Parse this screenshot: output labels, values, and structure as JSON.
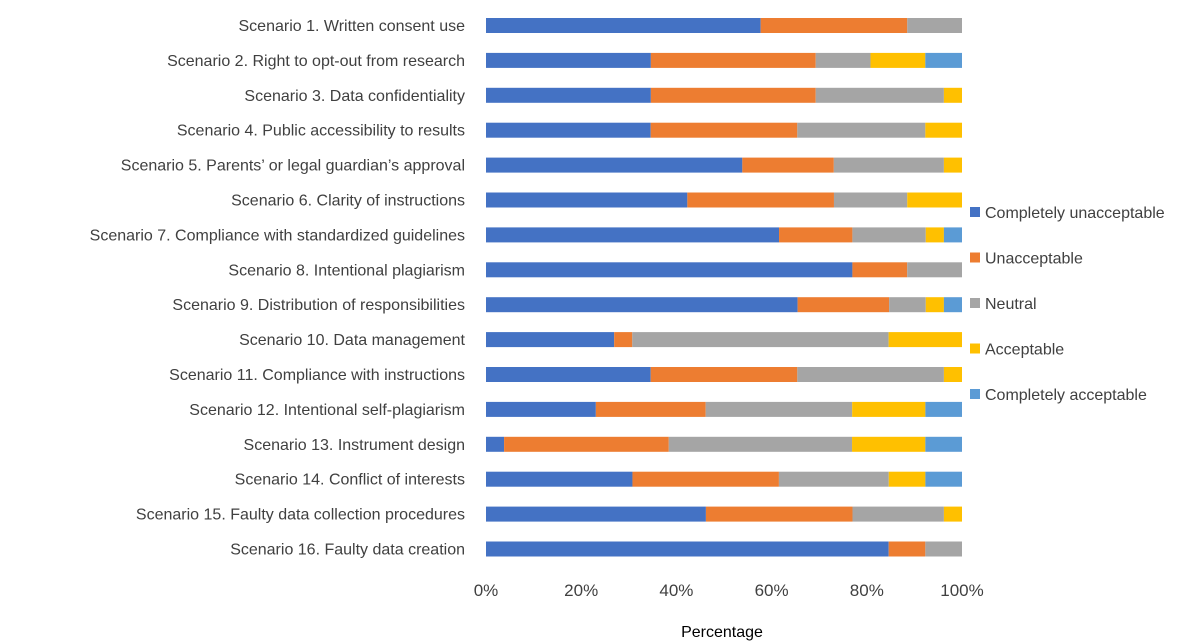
{
  "chart_data": {
    "type": "bar",
    "orientation": "horizontal",
    "stacked": true,
    "percent_stacked": true,
    "categories": [
      "Scenario 1. Written consent use",
      "Scenario 2. Right to opt-out from research",
      "Scenario 3. Data confidentiality",
      "Scenario 4. Public accessibility to results",
      "Scenario 5. Parents’ or legal guardian’s approval",
      "Scenario 6. Clarity of instructions",
      "Scenario 7. Compliance with standardized guidelines",
      "Scenario 8. Intentional plagiarism",
      "Scenario 9. Distribution of responsibilities",
      "Scenario 10. Data management",
      "Scenario 11. Compliance with instructions",
      "Scenario 12. Intentional self-plagiarism",
      "Scenario 13. Instrument design",
      "Scenario 14. Conflict of interests",
      "Scenario 15. Faulty data collection procedures",
      "Scenario 16. Faulty data creation"
    ],
    "series": [
      {
        "name": "Completely unacceptable",
        "color": "#4472C4",
        "values": [
          57.7,
          34.6,
          34.6,
          34.6,
          53.8,
          42.3,
          61.5,
          76.9,
          65.4,
          26.9,
          34.6,
          23.1,
          3.8,
          30.8,
          46.2,
          84.6
        ]
      },
      {
        "name": "Unacceptable",
        "color": "#ED7D31",
        "values": [
          30.8,
          34.6,
          34.6,
          30.8,
          19.2,
          30.8,
          15.4,
          11.5,
          19.2,
          3.8,
          30.8,
          23.1,
          34.6,
          30.8,
          30.8,
          7.7
        ]
      },
      {
        "name": "Neutral",
        "color": "#A5A5A5",
        "values": [
          11.5,
          11.5,
          26.9,
          26.9,
          23.1,
          15.4,
          15.4,
          11.5,
          7.7,
          53.8,
          30.8,
          30.8,
          38.5,
          23.1,
          19.2,
          7.7
        ]
      },
      {
        "name": "Acceptable",
        "color": "#FFC000",
        "values": [
          0,
          11.5,
          3.8,
          7.7,
          3.8,
          11.5,
          3.8,
          0,
          3.8,
          15.4,
          3.8,
          15.4,
          15.4,
          7.7,
          3.8,
          0
        ]
      },
      {
        "name": "Completely acceptable",
        "color": "#5B9BD5",
        "values": [
          0,
          7.7,
          0,
          0,
          0,
          0,
          3.8,
          0,
          3.8,
          0,
          0,
          7.7,
          7.7,
          7.7,
          0,
          0
        ]
      }
    ],
    "x_ticks": [
      "0%",
      "20%",
      "40%",
      "60%",
      "80%",
      "100%"
    ],
    "xlim": [
      0,
      100
    ],
    "xlabel": "Percentage",
    "ylabel": "",
    "title": "",
    "legend_position": "right",
    "grid": false
  }
}
